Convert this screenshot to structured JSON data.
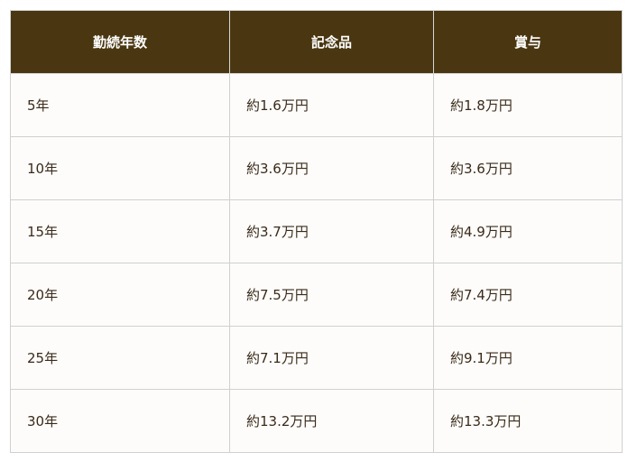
{
  "table": {
    "headers": [
      "勤続年数",
      "記念品",
      "賞与"
    ],
    "rows": [
      [
        "5年",
        "約1.6万円",
        "約1.8万円"
      ],
      [
        "10年",
        "約3.6万円",
        "約3.6万円"
      ],
      [
        "15年",
        "約3.7万円",
        "約4.9万円"
      ],
      [
        "20年",
        "約7.5万円",
        "約7.4万円"
      ],
      [
        "25年",
        "約7.1万円",
        "約9.1万円"
      ],
      [
        "30年",
        "約13.2万円",
        "約13.3万円"
      ]
    ]
  },
  "colors": {
    "header_bg": "#4a3712",
    "body_bg": "#fdfcfa",
    "text": "#3a2a1a"
  }
}
